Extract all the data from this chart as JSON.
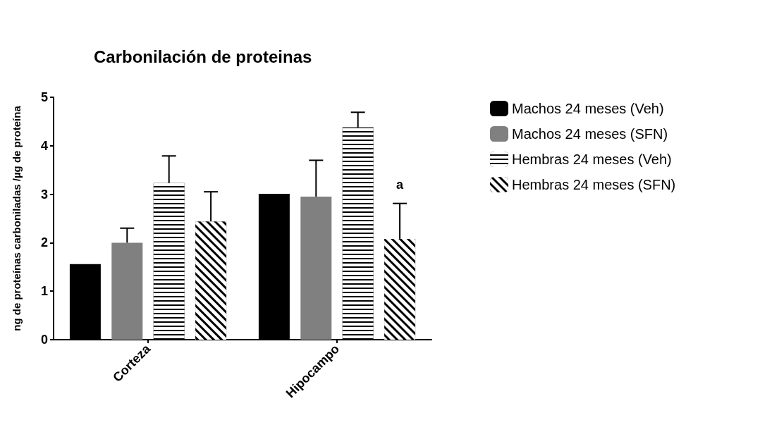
{
  "chart_data": {
    "type": "bar",
    "title": "Carbonilación de proteinas",
    "ylabel": "ng de proteínas carboniladas /µg de proteína",
    "categories": [
      "Corteza",
      "Hipocampo"
    ],
    "series": [
      {
        "name": "Machos 24 meses (Veh)",
        "color": "#000000",
        "values": [
          1.56,
          3.01
        ],
        "errors": [
          null,
          null
        ]
      },
      {
        "name": "Machos 24 meses (SFN)",
        "color": "#808080",
        "values": [
          2.0,
          2.95
        ],
        "errors": [
          [
            2.0,
            2.3
          ],
          [
            2.95,
            3.7
          ]
        ]
      },
      {
        "name": "Hembras 24 meses (Veh)",
        "color": "#000000",
        "values": [
          3.23,
          4.38
        ],
        "errors": [
          [
            3.23,
            3.79
          ],
          [
            4.38,
            4.69
          ]
        ]
      },
      {
        "name": "Hembras 24 meses (SFN)",
        "color": "#000000",
        "values": [
          2.44,
          2.08
        ],
        "errors": [
          [
            2.44,
            3.05
          ],
          [
            2.08,
            2.81
          ]
        ]
      }
    ],
    "ylim": [
      0,
      5
    ],
    "yticks": [
      0,
      1,
      2,
      3,
      4,
      5
    ],
    "grid": false,
    "legend": "right",
    "annotations": [
      "a"
    ]
  }
}
